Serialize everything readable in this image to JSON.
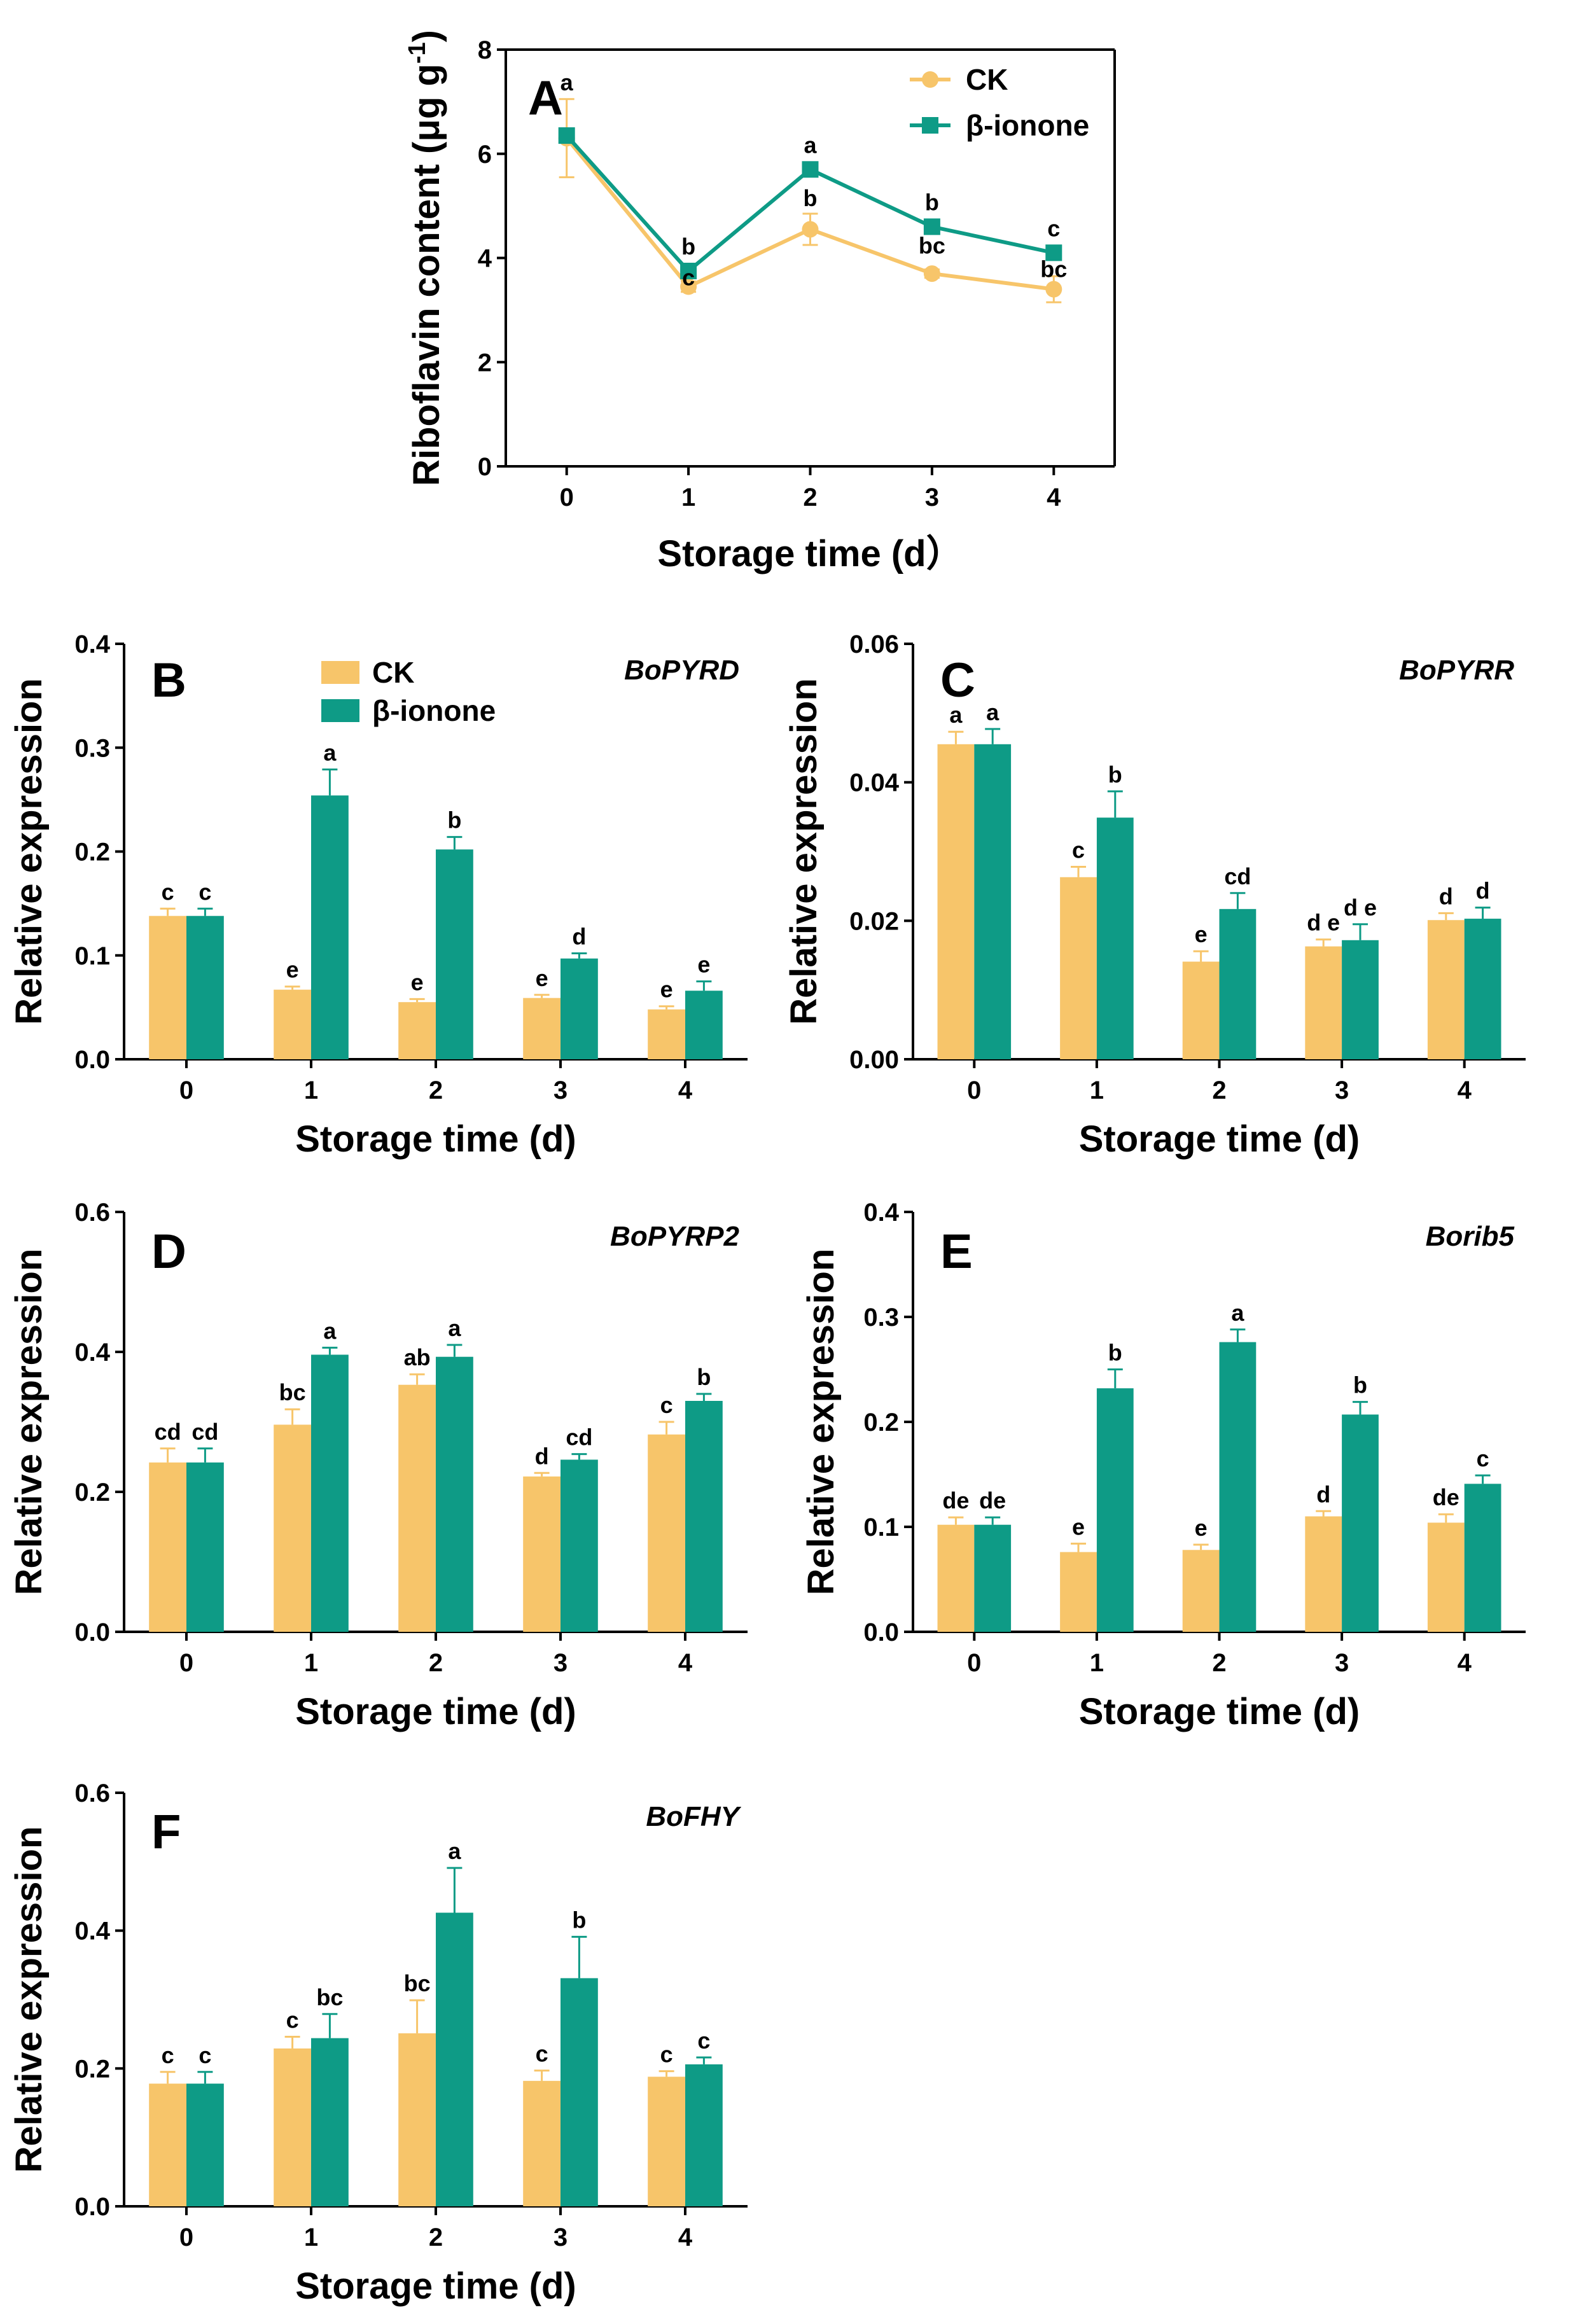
{
  "colors": {
    "ck": "#F7C56A",
    "treat": "#0E9B86",
    "axis": "#000000"
  },
  "chart_data": [
    {
      "id": "A",
      "type": "line",
      "panel_label": "A",
      "gene": "",
      "xlabel": "Storage time (d）",
      "ylabel_main": "Riboflavin content (μg g",
      "ylabel_sup": "-1",
      "ylabel_close": ")",
      "categories": [
        "0",
        "1",
        "2",
        "3",
        "4"
      ],
      "ylim": [
        0,
        8
      ],
      "yticks": [
        "0",
        "2",
        "4",
        "6",
        "8"
      ],
      "legend": [
        "CK",
        "β-ionone"
      ],
      "series": [
        {
          "name": "CK",
          "values": [
            6.3,
            3.45,
            4.55,
            3.7,
            3.4
          ],
          "err": [
            0.75,
            0.1,
            0.3,
            0.08,
            0.25
          ],
          "sig": [
            "a",
            "c",
            "b",
            "bc",
            "bc"
          ]
        },
        {
          "name": "β-ionone",
          "values": [
            6.35,
            3.75,
            5.7,
            4.6,
            4.1
          ],
          "err": [
            0.1,
            0.1,
            0.1,
            0.08,
            0.08
          ],
          "sig": [
            "",
            "b",
            "a",
            "b",
            "c"
          ]
        }
      ]
    },
    {
      "id": "B",
      "type": "bar",
      "panel_label": "B",
      "gene": "BoPYRD",
      "xlabel": "Storage time (d)",
      "ylabel": "Relative expression",
      "categories": [
        "0",
        "1",
        "2",
        "3",
        "4"
      ],
      "ylim": [
        0,
        0.4
      ],
      "yticks": [
        "0.0",
        "0.1",
        "0.2",
        "0.3",
        "0.4"
      ],
      "legend": [
        "CK",
        "β-ionone"
      ],
      "series": [
        {
          "name": "CK",
          "values": [
            0.138,
            0.067,
            0.055,
            0.059,
            0.048
          ],
          "err": [
            0.007,
            0.003,
            0.003,
            0.003,
            0.003
          ],
          "sig": [
            "c",
            "e",
            "e",
            "e",
            "e"
          ]
        },
        {
          "name": "β-ionone",
          "values": [
            0.138,
            0.254,
            0.202,
            0.097,
            0.066
          ],
          "err": [
            0.007,
            0.025,
            0.012,
            0.005,
            0.009
          ],
          "sig": [
            "c",
            "a",
            "b",
            "d",
            "e"
          ]
        }
      ]
    },
    {
      "id": "C",
      "type": "bar",
      "panel_label": "C",
      "gene": "BoPYRR",
      "xlabel": "Storage time (d)",
      "ylabel": "Relative expression",
      "categories": [
        "0",
        "1",
        "2",
        "3",
        "4"
      ],
      "ylim": [
        0,
        0.06
      ],
      "yticks": [
        "0.00",
        "0.02",
        "0.04",
        "0.06"
      ],
      "legend": [],
      "series": [
        {
          "name": "CK",
          "values": [
            0.0455,
            0.0263,
            0.0141,
            0.0163,
            0.0201
          ],
          "err": [
            0.0018,
            0.0015,
            0.0015,
            0.001,
            0.001
          ],
          "sig": [
            "a",
            "c",
            "e",
            "d e",
            "d"
          ]
        },
        {
          "name": "β-ionone",
          "values": [
            0.0455,
            0.0349,
            0.0217,
            0.0172,
            0.0203
          ],
          "err": [
            0.0022,
            0.0038,
            0.0023,
            0.0023,
            0.0016
          ],
          "sig": [
            "a",
            "b",
            "cd",
            "d e",
            "d"
          ]
        }
      ]
    },
    {
      "id": "D",
      "type": "bar",
      "panel_label": "D",
      "gene": "BoPYRP2",
      "xlabel": "Storage time (d)",
      "ylabel": "Relative expression",
      "categories": [
        "0",
        "1",
        "2",
        "3",
        "4"
      ],
      "ylim": [
        0,
        0.6
      ],
      "yticks": [
        "0.0",
        "0.2",
        "0.4",
        "0.6"
      ],
      "legend": [],
      "series": [
        {
          "name": "CK",
          "values": [
            0.242,
            0.296,
            0.353,
            0.222,
            0.282
          ],
          "err": [
            0.02,
            0.022,
            0.015,
            0.005,
            0.018
          ],
          "sig": [
            "cd",
            "bc",
            "ab",
            "d",
            "c"
          ]
        },
        {
          "name": "β-ionone",
          "values": [
            0.242,
            0.396,
            0.393,
            0.246,
            0.33
          ],
          "err": [
            0.02,
            0.01,
            0.017,
            0.008,
            0.01
          ],
          "sig": [
            "cd",
            "a",
            "a",
            "cd",
            "b"
          ]
        }
      ]
    },
    {
      "id": "E",
      "type": "bar",
      "panel_label": "E",
      "gene": "Borib5",
      "xlabel": "Storage time (d)",
      "ylabel": "Relative expression",
      "categories": [
        "0",
        "1",
        "2",
        "3",
        "4"
      ],
      "ylim": [
        0,
        0.4
      ],
      "yticks": [
        "0.0",
        "0.1",
        "0.2",
        "0.3",
        "0.4"
      ],
      "legend": [],
      "series": [
        {
          "name": "CK",
          "values": [
            0.102,
            0.076,
            0.078,
            0.11,
            0.104
          ],
          "err": [
            0.007,
            0.008,
            0.005,
            0.005,
            0.008
          ],
          "sig": [
            "de",
            "e",
            "e",
            "d",
            "de"
          ]
        },
        {
          "name": "β-ionone",
          "values": [
            0.102,
            0.232,
            0.276,
            0.207,
            0.141
          ],
          "err": [
            0.007,
            0.018,
            0.012,
            0.012,
            0.008
          ],
          "sig": [
            "de",
            "b",
            "a",
            "b",
            "c"
          ]
        }
      ]
    },
    {
      "id": "F",
      "type": "bar",
      "panel_label": "F",
      "gene": "BoFHY",
      "xlabel": "Storage time (d)",
      "ylabel": "Relative expression",
      "categories": [
        "0",
        "1",
        "2",
        "3",
        "4"
      ],
      "ylim": [
        0,
        0.6
      ],
      "yticks": [
        "0.0",
        "0.2",
        "0.4",
        "0.6"
      ],
      "legend": [],
      "series": [
        {
          "name": "CK",
          "values": [
            0.178,
            0.229,
            0.251,
            0.182,
            0.188
          ],
          "err": [
            0.017,
            0.017,
            0.048,
            0.015,
            0.008
          ],
          "sig": [
            "c",
            "c",
            "bc",
            "c",
            "c"
          ]
        },
        {
          "name": "β-ionone",
          "values": [
            0.178,
            0.244,
            0.426,
            0.331,
            0.206
          ],
          "err": [
            0.017,
            0.035,
            0.065,
            0.06,
            0.01
          ],
          "sig": [
            "c",
            "bc",
            "a",
            "b",
            "c"
          ]
        }
      ]
    }
  ]
}
